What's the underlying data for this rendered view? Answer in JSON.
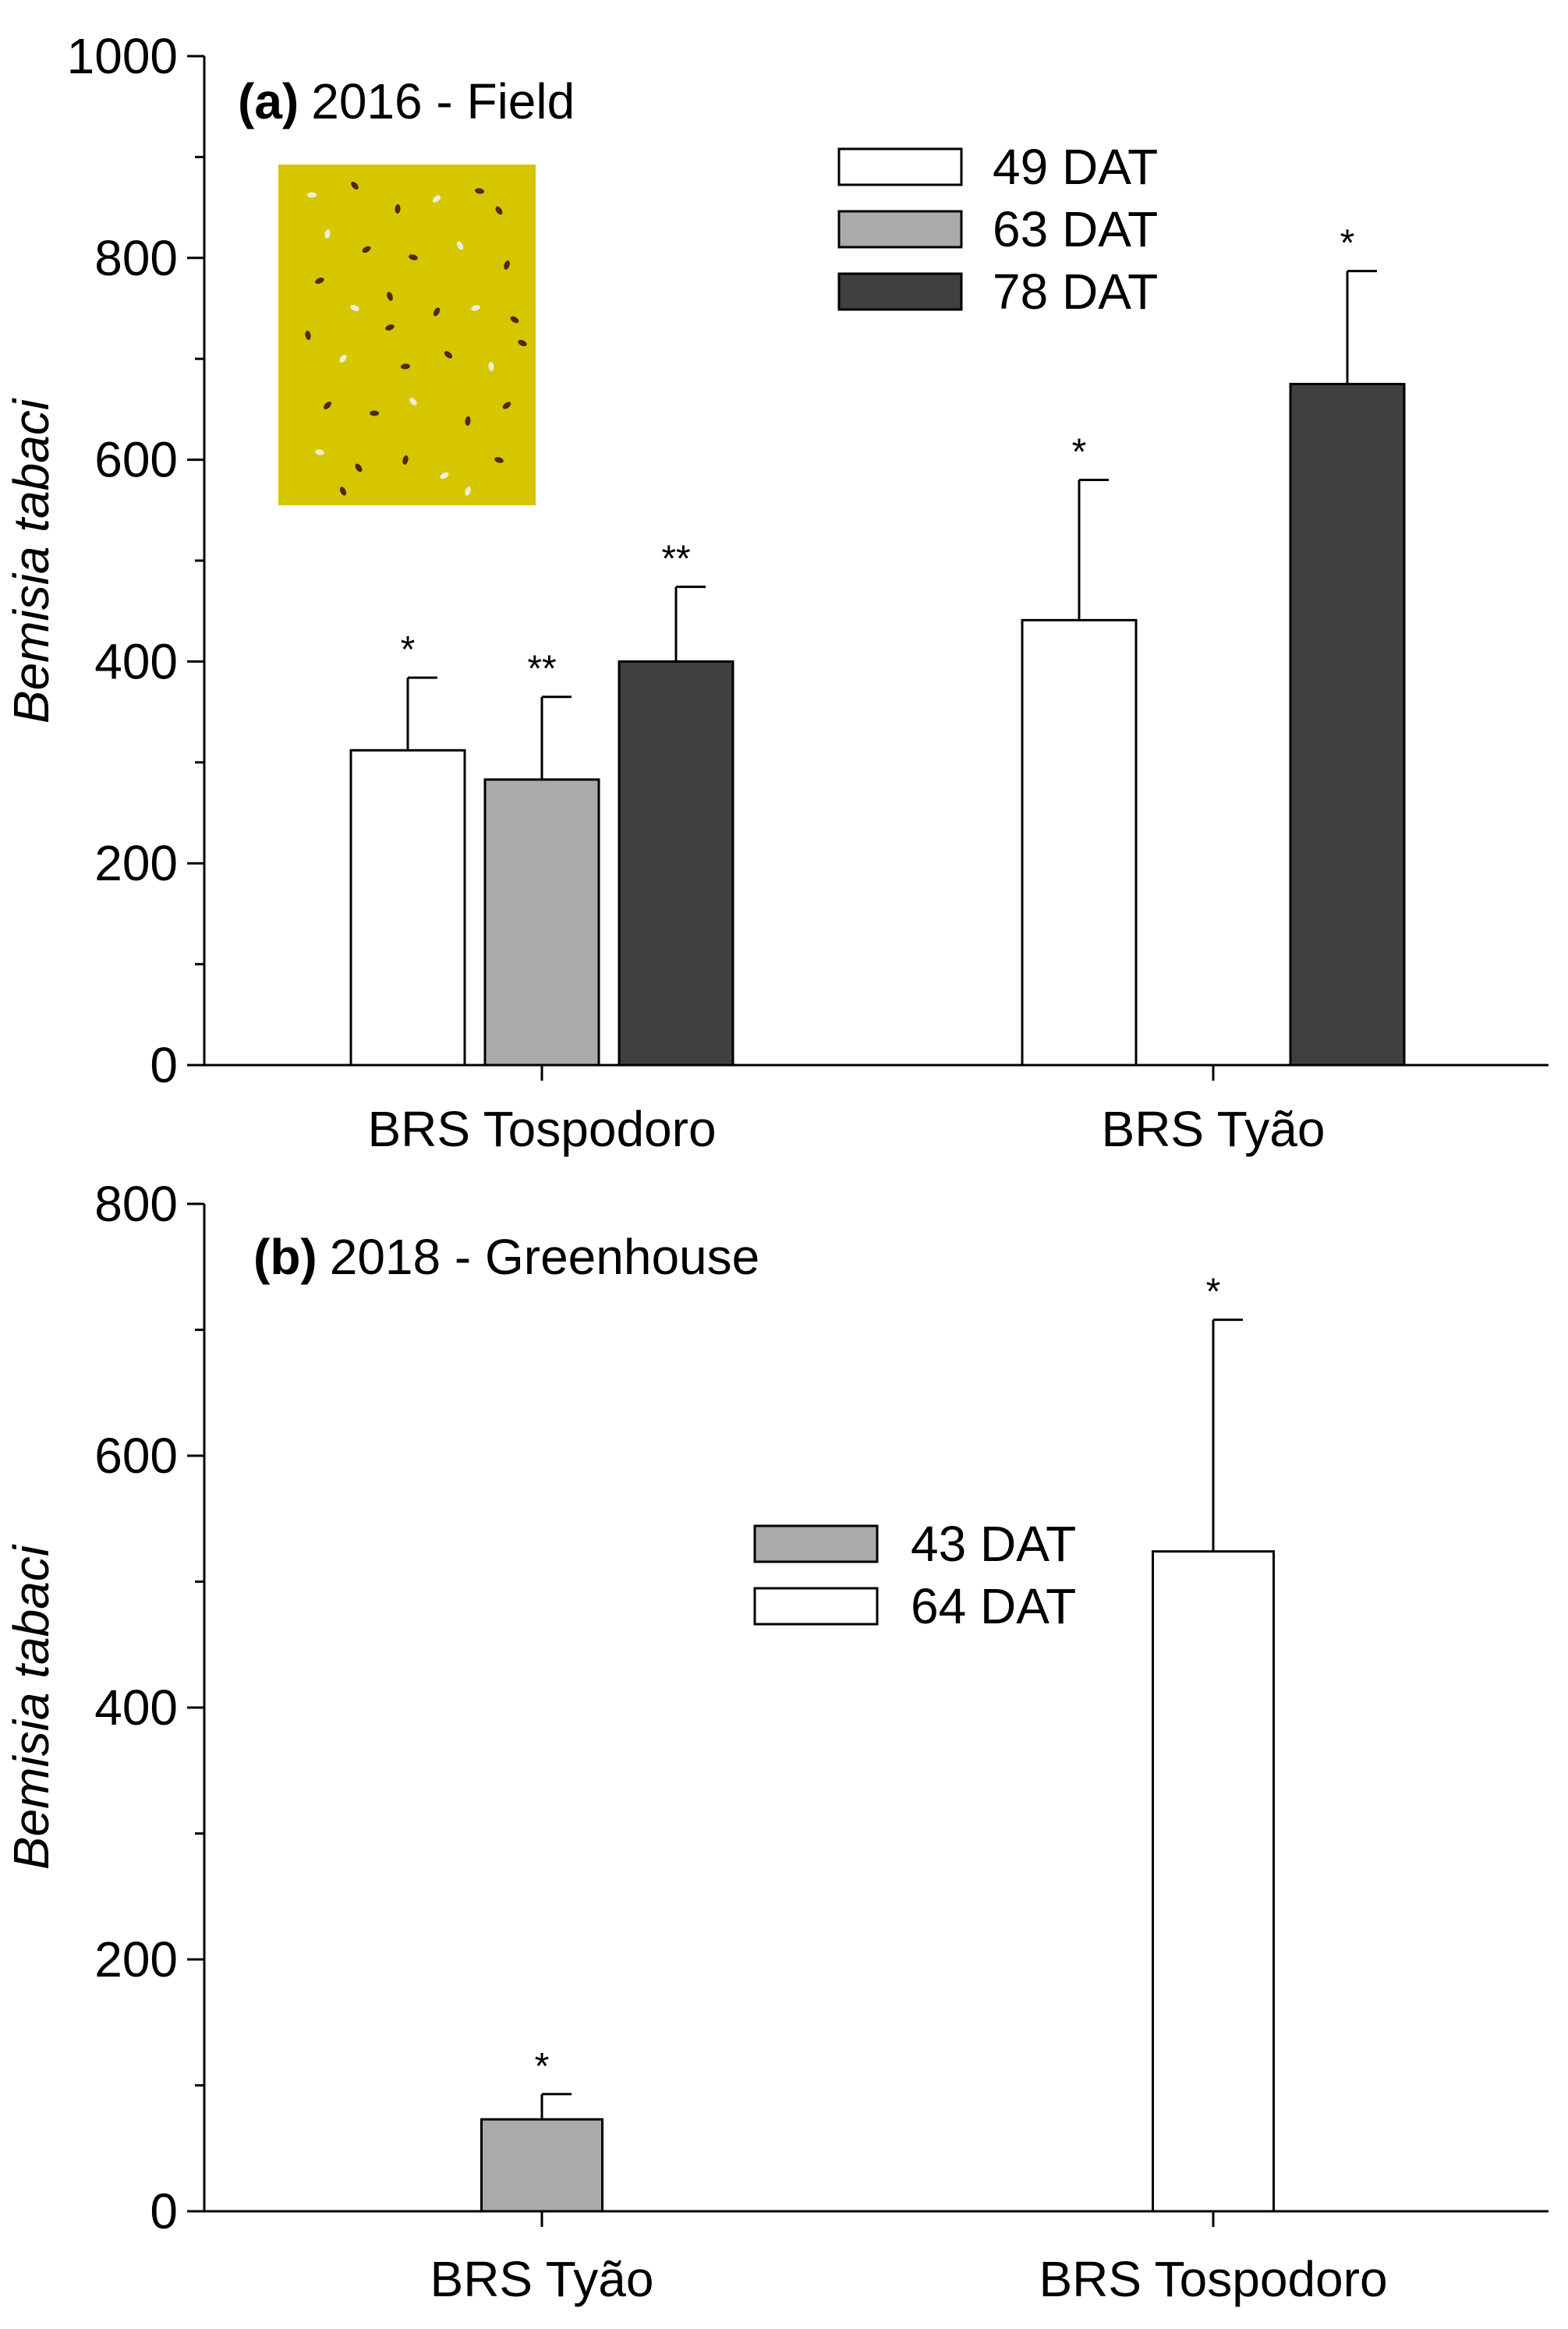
{
  "chart_data": [
    {
      "type": "bar",
      "panel_label": "(a)",
      "title": "2016 - Field",
      "ylabel": "Bemisia tabaci",
      "xlabel": "",
      "ylim": [
        0,
        1000
      ],
      "yticks": [
        0,
        200,
        400,
        600,
        800,
        1000
      ],
      "categories": [
        "BRS Tospodoro",
        "BRS Tyão"
      ],
      "series": [
        {
          "name": "49 DAT",
          "color": "#ffffff",
          "values": [
            312,
            441
          ],
          "errors": [
            72,
            139
          ],
          "significance": [
            "*",
            "*"
          ]
        },
        {
          "name": "63 DAT",
          "color": "#aaaaaa",
          "values": [
            283,
            null
          ],
          "errors": [
            82,
            null
          ],
          "significance": [
            "**",
            null
          ]
        },
        {
          "name": "78 DAT",
          "color": "#404040",
          "values": [
            400,
            675
          ],
          "errors": [
            74,
            112
          ],
          "significance": [
            "**",
            "*"
          ]
        }
      ],
      "legend_position": "top-right",
      "inset": "yellow-sticky-trap-photo"
    },
    {
      "type": "bar",
      "panel_label": "(b)",
      "title": "2018 - Greenhouse",
      "ylabel": "Bemisia tabaci",
      "xlabel": "",
      "ylim": [
        0,
        800
      ],
      "yticks": [
        0,
        200,
        400,
        600,
        800
      ],
      "categories": [
        "BRS Tyão",
        "BRS Tospodoro"
      ],
      "series": [
        {
          "name": "43 DAT",
          "color": "#aaaaaa",
          "values": [
            73,
            null
          ],
          "errors": [
            20,
            null
          ],
          "significance": [
            "*",
            null
          ]
        },
        {
          "name": "64 DAT",
          "color": "#ffffff",
          "values": [
            null,
            524
          ],
          "errors": [
            null,
            184
          ],
          "significance": [
            null,
            "*"
          ]
        }
      ],
      "legend_position": "center-right"
    }
  ]
}
